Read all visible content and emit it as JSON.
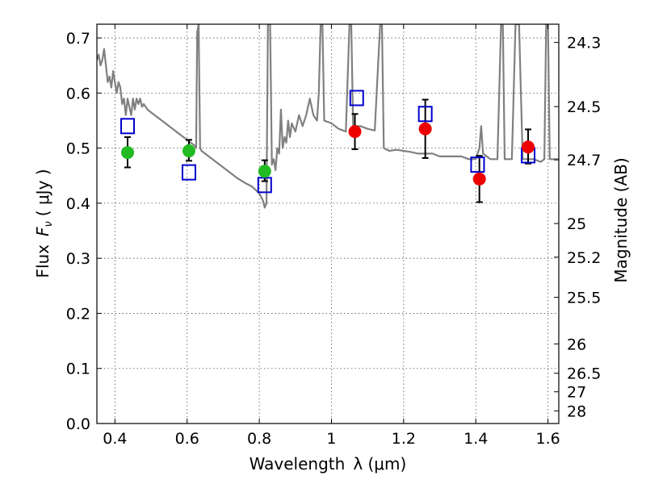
{
  "chart_data": {
    "type": "scatter",
    "xlabel": "Wavelength",
    "xlabel_symbol": "λ (μm)",
    "ylabel": "Flux",
    "ylabel_symbol": "F",
    "ylabel_subscript": "ν",
    "ylabel_unit": "( μJy )",
    "y2label": "Magnitude (AB)",
    "xlim": [
      0.35,
      1.63
    ],
    "ylim": [
      0.0,
      0.725
    ],
    "grid": true,
    "x_ticks": [
      {
        "value": 0.4,
        "label": "0.4"
      },
      {
        "value": 0.6,
        "label": "0.6"
      },
      {
        "value": 0.8,
        "label": "0.8"
      },
      {
        "value": 1.0,
        "label": "1"
      },
      {
        "value": 1.2,
        "label": "1.2"
      },
      {
        "value": 1.4,
        "label": "1.4"
      },
      {
        "value": 1.6,
        "label": "1.6"
      }
    ],
    "y_ticks": [
      {
        "value": 0.0,
        "label": "0.0"
      },
      {
        "value": 0.1,
        "label": "0.1"
      },
      {
        "value": 0.2,
        "label": "0.2"
      },
      {
        "value": 0.3,
        "label": "0.3"
      },
      {
        "value": 0.4,
        "label": "0.4"
      },
      {
        "value": 0.5,
        "label": "0.5"
      },
      {
        "value": 0.6,
        "label": "0.6"
      },
      {
        "value": 0.7,
        "label": "0.7"
      }
    ],
    "y2_ticks": [
      {
        "value": 24.3,
        "label": "24.3"
      },
      {
        "value": 24.5,
        "label": "24.5"
      },
      {
        "value": 24.7,
        "label": "24.7"
      },
      {
        "value": 25.0,
        "label": "25"
      },
      {
        "value": 25.2,
        "label": "25.2"
      },
      {
        "value": 25.5,
        "label": "25.5"
      },
      {
        "value": 26.0,
        "label": "26"
      },
      {
        "value": 26.5,
        "label": "26.5"
      },
      {
        "value": 27.0,
        "label": "27"
      },
      {
        "value": 28.0,
        "label": "28"
      }
    ],
    "colors": {
      "model": "#808080",
      "green": "#22bb22",
      "red": "#ee0000",
      "model_box": "#0000cc",
      "errorbar": "#000000"
    },
    "model_spectrum": [
      [
        0.35,
        0.66
      ],
      [
        0.355,
        0.67
      ],
      [
        0.36,
        0.65
      ],
      [
        0.365,
        0.66
      ],
      [
        0.37,
        0.68
      ],
      [
        0.375,
        0.65
      ],
      [
        0.38,
        0.62
      ],
      [
        0.385,
        0.63
      ],
      [
        0.39,
        0.61
      ],
      [
        0.395,
        0.64
      ],
      [
        0.4,
        0.62
      ],
      [
        0.405,
        0.6
      ],
      [
        0.41,
        0.62
      ],
      [
        0.415,
        0.61
      ],
      [
        0.42,
        0.58
      ],
      [
        0.425,
        0.59
      ],
      [
        0.43,
        0.56
      ],
      [
        0.435,
        0.59
      ],
      [
        0.44,
        0.575
      ],
      [
        0.445,
        0.56
      ],
      [
        0.45,
        0.59
      ],
      [
        0.455,
        0.57
      ],
      [
        0.46,
        0.59
      ],
      [
        0.465,
        0.58
      ],
      [
        0.47,
        0.59
      ],
      [
        0.475,
        0.575
      ],
      [
        0.48,
        0.58
      ],
      [
        0.49,
        0.57
      ],
      [
        0.5,
        0.565
      ],
      [
        0.52,
        0.555
      ],
      [
        0.54,
        0.545
      ],
      [
        0.56,
        0.535
      ],
      [
        0.58,
        0.525
      ],
      [
        0.6,
        0.515
      ],
      [
        0.62,
        0.505
      ],
      [
        0.625,
        0.5
      ],
      [
        0.628,
        0.71
      ],
      [
        0.632,
        0.725
      ],
      [
        0.636,
        0.5
      ],
      [
        0.64,
        0.495
      ],
      [
        0.66,
        0.485
      ],
      [
        0.68,
        0.475
      ],
      [
        0.7,
        0.465
      ],
      [
        0.72,
        0.455
      ],
      [
        0.74,
        0.445
      ],
      [
        0.76,
        0.437
      ],
      [
        0.78,
        0.43
      ],
      [
        0.8,
        0.418
      ],
      [
        0.81,
        0.405
      ],
      [
        0.815,
        0.392
      ],
      [
        0.82,
        0.4
      ],
      [
        0.824,
        0.725
      ],
      [
        0.83,
        0.725
      ],
      [
        0.835,
        0.47
      ],
      [
        0.84,
        0.48
      ],
      [
        0.845,
        0.46
      ],
      [
        0.85,
        0.5
      ],
      [
        0.855,
        0.49
      ],
      [
        0.86,
        0.57
      ],
      [
        0.865,
        0.5
      ],
      [
        0.87,
        0.52
      ],
      [
        0.875,
        0.51
      ],
      [
        0.88,
        0.55
      ],
      [
        0.885,
        0.52
      ],
      [
        0.89,
        0.545
      ],
      [
        0.9,
        0.53
      ],
      [
        0.91,
        0.56
      ],
      [
        0.92,
        0.54
      ],
      [
        0.93,
        0.56
      ],
      [
        0.94,
        0.59
      ],
      [
        0.95,
        0.56
      ],
      [
        0.96,
        0.55
      ],
      [
        0.965,
        0.6
      ],
      [
        0.97,
        0.725
      ],
      [
        0.975,
        0.725
      ],
      [
        0.98,
        0.55
      ],
      [
        1.0,
        0.545
      ],
      [
        1.02,
        0.535
      ],
      [
        1.04,
        0.53
      ],
      [
        1.05,
        0.725
      ],
      [
        1.055,
        0.725
      ],
      [
        1.06,
        0.54
      ],
      [
        1.08,
        0.54
      ],
      [
        1.1,
        0.535
      ],
      [
        1.12,
        0.532
      ],
      [
        1.135,
        0.725
      ],
      [
        1.14,
        0.725
      ],
      [
        1.145,
        0.5
      ],
      [
        1.16,
        0.495
      ],
      [
        1.18,
        0.497
      ],
      [
        1.2,
        0.495
      ],
      [
        1.22,
        0.493
      ],
      [
        1.24,
        0.49
      ],
      [
        1.26,
        0.49
      ],
      [
        1.28,
        0.49
      ],
      [
        1.3,
        0.485
      ],
      [
        1.32,
        0.485
      ],
      [
        1.34,
        0.485
      ],
      [
        1.36,
        0.485
      ],
      [
        1.38,
        0.48
      ],
      [
        1.4,
        0.48
      ],
      [
        1.41,
        0.5
      ],
      [
        1.415,
        0.54
      ],
      [
        1.42,
        0.49
      ],
      [
        1.44,
        0.48
      ],
      [
        1.46,
        0.48
      ],
      [
        1.47,
        0.725
      ],
      [
        1.475,
        0.725
      ],
      [
        1.48,
        0.48
      ],
      [
        1.5,
        0.48
      ],
      [
        1.51,
        0.725
      ],
      [
        1.52,
        0.725
      ],
      [
        1.53,
        0.48
      ],
      [
        1.56,
        0.48
      ],
      [
        1.58,
        0.475
      ],
      [
        1.59,
        0.48
      ],
      [
        1.595,
        0.725
      ],
      [
        1.6,
        0.725
      ],
      [
        1.605,
        0.48
      ],
      [
        1.63,
        0.48
      ]
    ],
    "observed_green": [
      {
        "x": 0.435,
        "y": 0.492,
        "yerr_low": 0.027,
        "yerr_high": 0.028
      },
      {
        "x": 0.605,
        "y": 0.495,
        "yerr_low": 0.018,
        "yerr_high": 0.02
      },
      {
        "x": 0.815,
        "y": 0.458,
        "yerr_low": 0.018,
        "yerr_high": 0.02
      }
    ],
    "observed_red": [
      {
        "x": 1.065,
        "y": 0.53,
        "yerr_low": 0.032,
        "yerr_high": 0.032
      },
      {
        "x": 1.26,
        "y": 0.535,
        "yerr_low": 0.053,
        "yerr_high": 0.053
      },
      {
        "x": 1.41,
        "y": 0.444,
        "yerr_low": 0.042,
        "yerr_high": 0.042
      },
      {
        "x": 1.545,
        "y": 0.502,
        "yerr_low": 0.03,
        "yerr_high": 0.032
      }
    ],
    "model_photometry": [
      {
        "x": 0.435,
        "y": 0.54
      },
      {
        "x": 0.605,
        "y": 0.456
      },
      {
        "x": 0.815,
        "y": 0.433
      },
      {
        "x": 1.07,
        "y": 0.591
      },
      {
        "x": 1.26,
        "y": 0.562
      },
      {
        "x": 1.405,
        "y": 0.47
      },
      {
        "x": 1.545,
        "y": 0.487
      }
    ]
  }
}
